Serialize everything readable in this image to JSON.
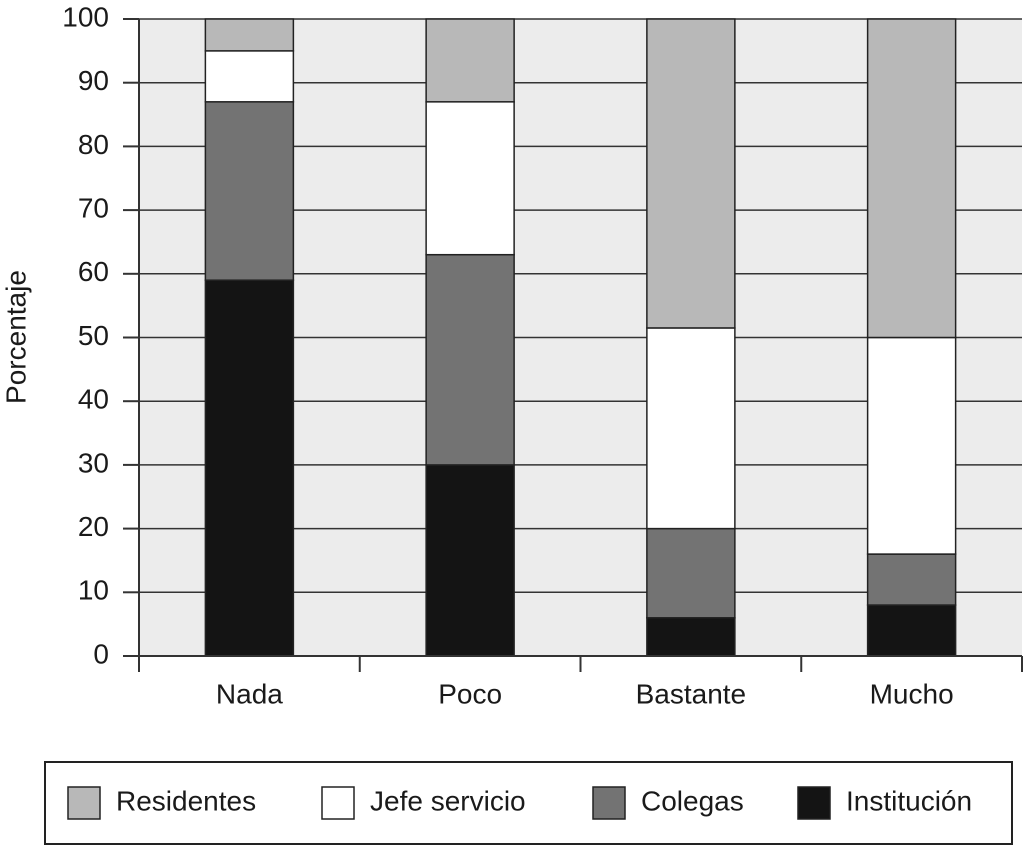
{
  "chart_data": {
    "type": "stacked_bar",
    "y_label": "Porcentaje",
    "categories": [
      "Nada",
      "Poco",
      "Bastante",
      "Mucho"
    ],
    "series": [
      {
        "name": "Residentes",
        "color": "#b8b8b8",
        "values": [
          5,
          13,
          48.5,
          50
        ]
      },
      {
        "name": "Jefe servicio",
        "color": "#ffffff",
        "values": [
          8,
          24,
          31.5,
          34
        ]
      },
      {
        "name": "Colegas",
        "color": "#737373",
        "values": [
          28,
          33,
          14,
          8
        ]
      },
      {
        "name": "Institución",
        "color": "#141414",
        "values": [
          59,
          30,
          6,
          8
        ]
      }
    ],
    "ylim": [
      0,
      100
    ],
    "yticks": [
      0,
      10,
      20,
      30,
      40,
      50,
      60,
      70,
      80,
      90,
      100
    ],
    "grid": true
  }
}
